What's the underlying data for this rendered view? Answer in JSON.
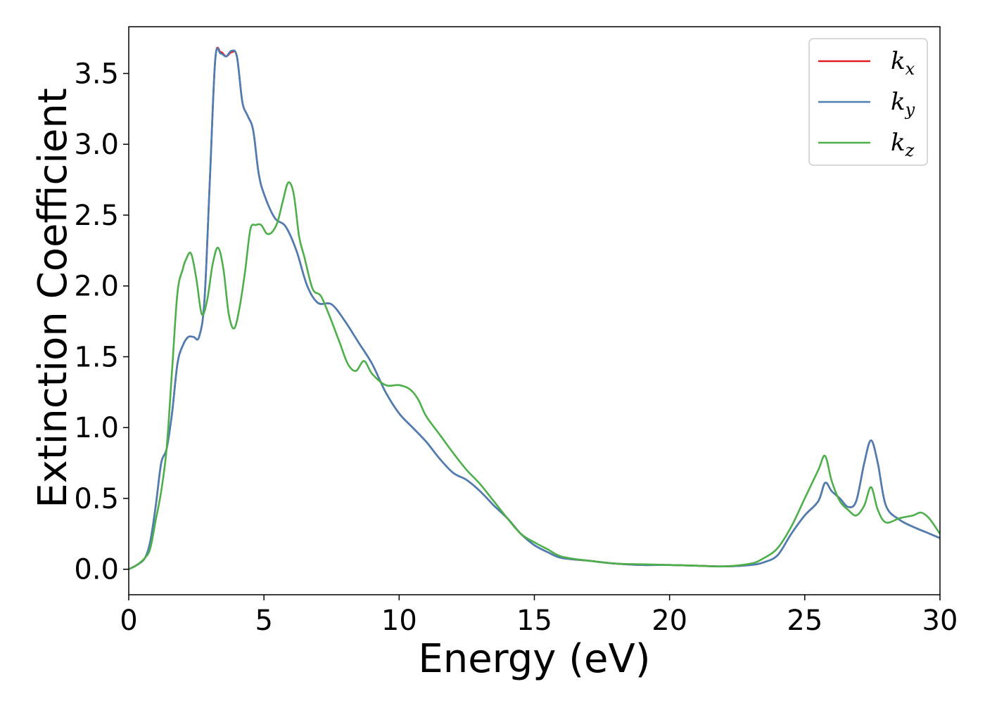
{
  "chart_data": {
    "type": "line",
    "title": "",
    "xlabel": "Energy (eV)",
    "ylabel": "Extinction Coefficient",
    "xlim": [
      0,
      30
    ],
    "ylim": [
      -0.18,
      3.83
    ],
    "xticks": [
      0,
      5,
      10,
      15,
      20,
      25,
      30
    ],
    "xtick_labels": [
      "0",
      "5",
      "10",
      "15",
      "20",
      "25",
      "30"
    ],
    "yticks": [
      0.0,
      0.5,
      1.0,
      1.5,
      2.0,
      2.5,
      3.0,
      3.5
    ],
    "ytick_labels": [
      "0.0",
      "0.5",
      "1.0",
      "1.5",
      "2.0",
      "2.5",
      "3.0",
      "3.5"
    ],
    "grid": false,
    "legend_position": "top-right",
    "series": [
      {
        "name": "k",
        "subscript": "x",
        "color": "#e41a1c",
        "x": [
          0,
          0.3,
          0.6,
          0.8,
          1.0,
          1.2,
          1.4,
          1.6,
          1.8,
          2.0,
          2.2,
          2.4,
          2.6,
          2.8,
          3.0,
          3.2,
          3.4,
          3.6,
          3.8,
          4.0,
          4.2,
          4.4,
          4.6,
          4.8,
          5.0,
          5.4,
          5.8,
          6.2,
          6.6,
          7.0,
          7.5,
          8.0,
          8.5,
          9.0,
          9.5,
          10.0,
          10.5,
          11.0,
          11.5,
          12.0,
          12.5,
          13.0,
          13.5,
          14.0,
          14.5,
          15.0,
          15.5,
          16.0,
          17.0,
          18.0,
          19.0,
          20.0,
          21.0,
          22.0,
          23.0,
          23.5,
          24.0,
          24.5,
          25.0,
          25.5,
          25.75,
          26.0,
          26.3,
          26.6,
          26.9,
          27.2,
          27.45,
          27.7,
          28.0,
          28.5,
          29.0,
          29.5,
          30.0
        ],
        "y": [
          0.0,
          0.03,
          0.08,
          0.2,
          0.45,
          0.75,
          0.85,
          1.1,
          1.45,
          1.58,
          1.64,
          1.64,
          1.64,
          1.9,
          2.75,
          3.6,
          3.65,
          3.62,
          3.65,
          3.62,
          3.3,
          3.2,
          3.1,
          2.8,
          2.65,
          2.48,
          2.42,
          2.25,
          2.0,
          1.88,
          1.87,
          1.75,
          1.6,
          1.45,
          1.25,
          1.1,
          1.0,
          0.9,
          0.78,
          0.68,
          0.63,
          0.55,
          0.45,
          0.36,
          0.25,
          0.17,
          0.12,
          0.08,
          0.06,
          0.04,
          0.03,
          0.03,
          0.025,
          0.02,
          0.03,
          0.05,
          0.1,
          0.25,
          0.38,
          0.48,
          0.61,
          0.55,
          0.5,
          0.44,
          0.48,
          0.75,
          0.91,
          0.75,
          0.45,
          0.35,
          0.3,
          0.26,
          0.22
        ]
      },
      {
        "name": "k",
        "subscript": "y",
        "color": "#4a7fb5",
        "x": [
          0,
          0.3,
          0.6,
          0.8,
          1.0,
          1.2,
          1.4,
          1.6,
          1.8,
          2.0,
          2.2,
          2.4,
          2.6,
          2.8,
          3.0,
          3.2,
          3.4,
          3.6,
          3.8,
          4.0,
          4.2,
          4.4,
          4.6,
          4.8,
          5.0,
          5.4,
          5.8,
          6.2,
          6.6,
          7.0,
          7.5,
          8.0,
          8.5,
          9.0,
          9.5,
          10.0,
          10.5,
          11.0,
          11.5,
          12.0,
          12.5,
          13.0,
          13.5,
          14.0,
          14.5,
          15.0,
          15.5,
          16.0,
          17.0,
          18.0,
          19.0,
          20.0,
          21.0,
          22.0,
          23.0,
          23.5,
          24.0,
          24.5,
          25.0,
          25.5,
          25.75,
          26.0,
          26.3,
          26.6,
          26.9,
          27.2,
          27.45,
          27.7,
          28.0,
          28.5,
          29.0,
          29.5,
          30.0
        ],
        "y": [
          0.0,
          0.03,
          0.08,
          0.2,
          0.45,
          0.75,
          0.85,
          1.1,
          1.45,
          1.58,
          1.64,
          1.64,
          1.64,
          1.9,
          2.75,
          3.6,
          3.64,
          3.62,
          3.66,
          3.62,
          3.3,
          3.2,
          3.1,
          2.8,
          2.65,
          2.48,
          2.42,
          2.25,
          2.0,
          1.88,
          1.87,
          1.75,
          1.6,
          1.45,
          1.25,
          1.1,
          1.0,
          0.9,
          0.78,
          0.68,
          0.63,
          0.55,
          0.45,
          0.36,
          0.25,
          0.17,
          0.12,
          0.08,
          0.06,
          0.04,
          0.03,
          0.03,
          0.025,
          0.02,
          0.03,
          0.05,
          0.1,
          0.25,
          0.38,
          0.48,
          0.61,
          0.55,
          0.5,
          0.44,
          0.48,
          0.75,
          0.91,
          0.75,
          0.45,
          0.35,
          0.3,
          0.26,
          0.22
        ]
      },
      {
        "name": "k",
        "subscript": "z",
        "color": "#4daf4a",
        "x": [
          0,
          0.3,
          0.6,
          0.8,
          1.0,
          1.2,
          1.4,
          1.6,
          1.8,
          2.0,
          2.1,
          2.3,
          2.5,
          2.7,
          2.9,
          3.1,
          3.3,
          3.5,
          3.7,
          3.9,
          4.1,
          4.3,
          4.5,
          4.7,
          4.9,
          5.1,
          5.3,
          5.5,
          5.7,
          5.9,
          6.1,
          6.3,
          6.5,
          6.8,
          7.1,
          7.4,
          7.8,
          8.1,
          8.4,
          8.7,
          9.0,
          9.5,
          10.0,
          10.4,
          10.7,
          11.0,
          11.5,
          12.0,
          12.5,
          13.0,
          13.5,
          14.0,
          14.5,
          15.0,
          15.5,
          16.0,
          17.0,
          18.0,
          19.0,
          20.0,
          21.0,
          22.0,
          23.0,
          23.5,
          24.0,
          24.5,
          25.0,
          25.5,
          25.75,
          26.0,
          26.3,
          26.6,
          26.9,
          27.2,
          27.45,
          27.7,
          28.0,
          28.5,
          29.0,
          29.3,
          29.6,
          30.0
        ],
        "y": [
          0.0,
          0.03,
          0.08,
          0.15,
          0.35,
          0.55,
          0.85,
          1.4,
          1.95,
          2.12,
          2.18,
          2.23,
          2.05,
          1.8,
          1.9,
          2.15,
          2.27,
          2.12,
          1.8,
          1.7,
          1.85,
          2.1,
          2.4,
          2.43,
          2.43,
          2.37,
          2.38,
          2.45,
          2.6,
          2.73,
          2.65,
          2.35,
          2.2,
          1.98,
          1.93,
          1.8,
          1.6,
          1.45,
          1.4,
          1.47,
          1.38,
          1.3,
          1.3,
          1.27,
          1.2,
          1.08,
          0.95,
          0.82,
          0.7,
          0.6,
          0.48,
          0.36,
          0.25,
          0.19,
          0.14,
          0.09,
          0.06,
          0.04,
          0.035,
          0.03,
          0.025,
          0.02,
          0.04,
          0.08,
          0.15,
          0.3,
          0.5,
          0.7,
          0.8,
          0.62,
          0.48,
          0.42,
          0.38,
          0.45,
          0.58,
          0.42,
          0.33,
          0.36,
          0.38,
          0.4,
          0.36,
          0.25
        ]
      }
    ]
  }
}
